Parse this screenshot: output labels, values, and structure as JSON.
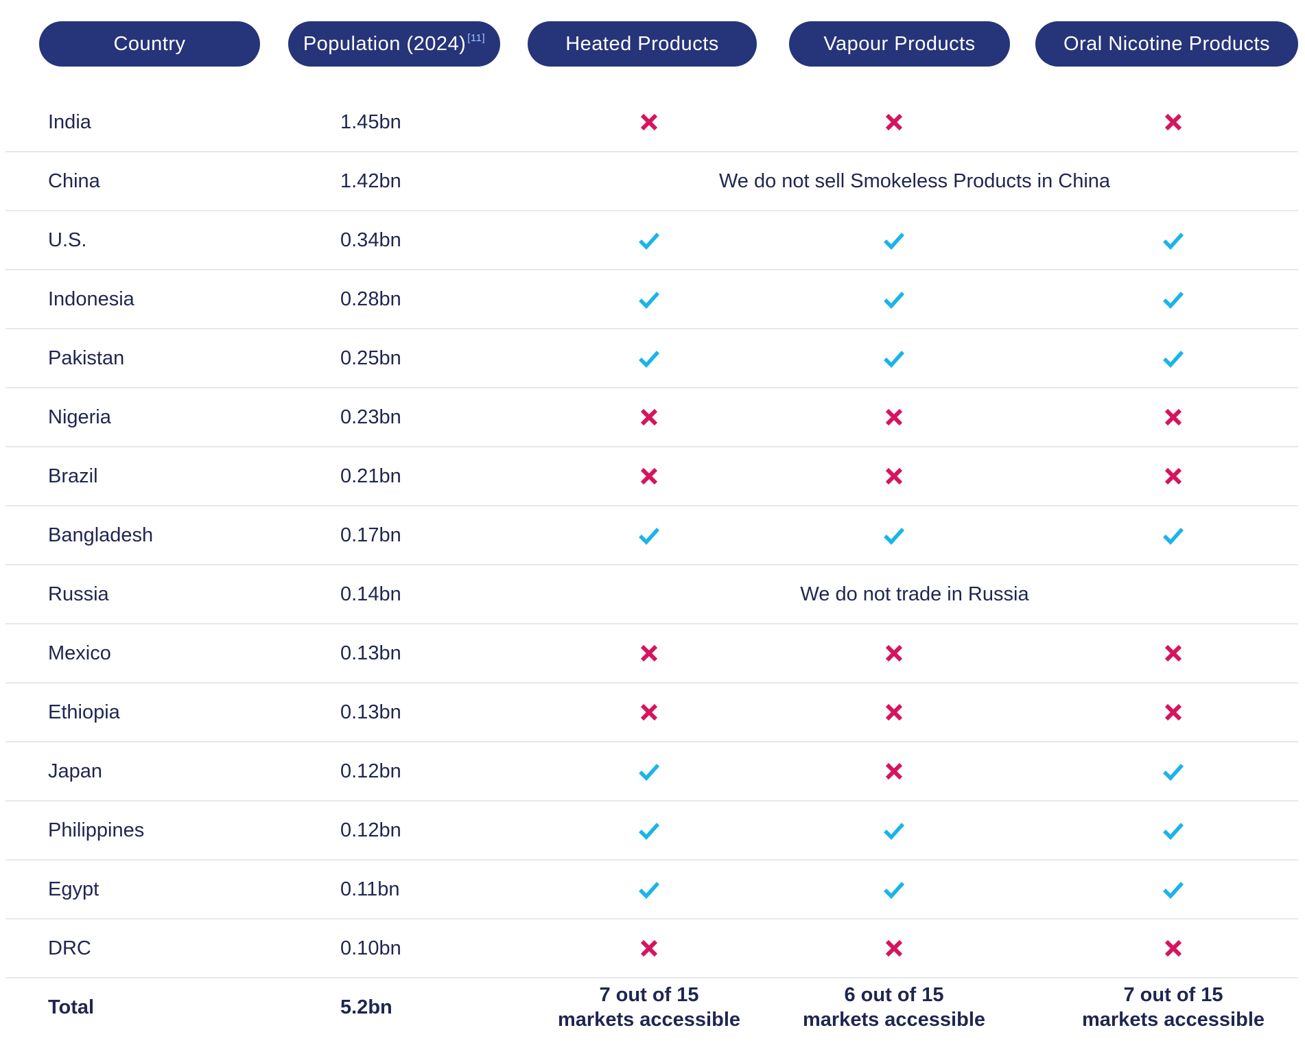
{
  "header": {
    "country": "Country",
    "population": "Population (2024)",
    "population_ref": "[11]",
    "heated": "Heated Products",
    "vapour": "Vapour Products",
    "oral": "Oral Nicotine Products"
  },
  "colors": {
    "header_bg": "#263479",
    "check": "#1ab4e8",
    "cross": "#d6145f",
    "text": "#1f2650"
  },
  "rows": [
    {
      "country": "India",
      "population": "1.45bn",
      "heated": "cross-icon",
      "vapour": "cross-icon",
      "oral": "cross-icon"
    },
    {
      "country": "China",
      "population": "1.42bn",
      "note": "We do not sell Smokeless Products in China"
    },
    {
      "country": "U.S.",
      "population": "0.34bn",
      "heated": "check-icon",
      "vapour": "check-icon",
      "oral": "check-icon"
    },
    {
      "country": "Indonesia",
      "population": "0.28bn",
      "heated": "check-icon",
      "vapour": "check-icon",
      "oral": "check-icon"
    },
    {
      "country": "Pakistan",
      "population": "0.25bn",
      "heated": "check-icon",
      "vapour": "check-icon",
      "oral": "check-icon"
    },
    {
      "country": "Nigeria",
      "population": "0.23bn",
      "heated": "cross-icon",
      "vapour": "cross-icon",
      "oral": "cross-icon"
    },
    {
      "country": "Brazil",
      "population": "0.21bn",
      "heated": "cross-icon",
      "vapour": "cross-icon",
      "oral": "cross-icon"
    },
    {
      "country": "Bangladesh",
      "population": "0.17bn",
      "heated": "check-icon",
      "vapour": "check-icon",
      "oral": "check-icon"
    },
    {
      "country": "Russia",
      "population": "0.14bn",
      "note": "We do not trade in Russia"
    },
    {
      "country": "Mexico",
      "population": "0.13bn",
      "heated": "cross-icon",
      "vapour": "cross-icon",
      "oral": "cross-icon"
    },
    {
      "country": "Ethiopia",
      "population": "0.13bn",
      "heated": "cross-icon",
      "vapour": "cross-icon",
      "oral": "cross-icon"
    },
    {
      "country": "Japan",
      "population": "0.12bn",
      "heated": "check-icon",
      "vapour": "cross-icon",
      "oral": "check-icon"
    },
    {
      "country": "Philippines",
      "population": "0.12bn",
      "heated": "check-icon",
      "vapour": "check-icon",
      "oral": "check-icon"
    },
    {
      "country": "Egypt",
      "population": "0.11bn",
      "heated": "check-icon",
      "vapour": "check-icon",
      "oral": "check-icon"
    },
    {
      "country": "DRC",
      "population": "0.10bn",
      "heated": "cross-icon",
      "vapour": "cross-icon",
      "oral": "cross-icon"
    }
  ],
  "total": {
    "label": "Total",
    "population": "5.2bn",
    "heated_line1": "7 out of 15",
    "heated_line2": "markets accessible",
    "vapour_line1": "6 out of 15",
    "vapour_line2": "markets accessible",
    "oral_line1": "7 out of 15",
    "oral_line2": "markets accessible"
  }
}
